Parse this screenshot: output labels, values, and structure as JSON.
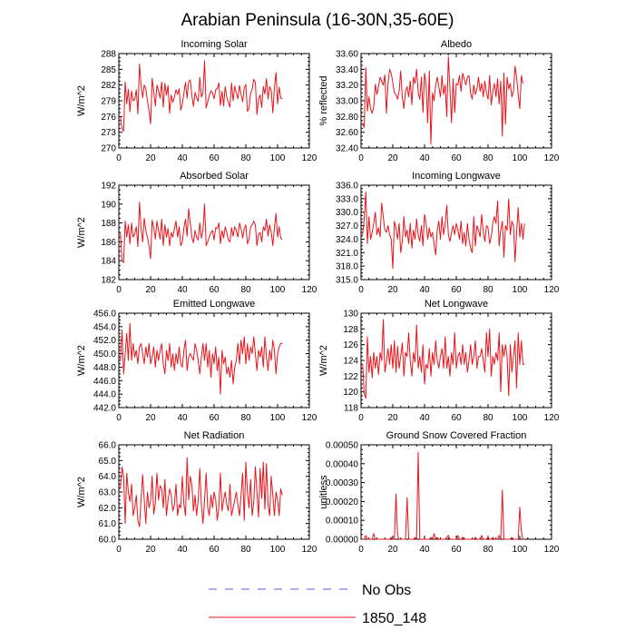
{
  "title": "Arabian Peninsula (16-30N,35-60E)",
  "colors": {
    "model_line": "#e8141b",
    "obs_line": "#5b5bd6",
    "axis": "#000000"
  },
  "legend": {
    "obs_label": "No Obs",
    "model_label": "1850_148"
  },
  "chart_data": [
    {
      "type": "line",
      "title": "Incoming Solar",
      "ylabel": "W/m^2",
      "xlim": [
        0,
        120
      ],
      "xticks": [
        0,
        20,
        40,
        60,
        80,
        100,
        120
      ],
      "ylim": [
        270,
        288
      ],
      "yticks": [
        "270",
        "273",
        "276",
        "279",
        "282",
        "285",
        "288"
      ],
      "series": [
        {
          "values": [
            276.0,
            273.7,
            273.2,
            282.6,
            278.4,
            281.2,
            276.9,
            280.9,
            279.0,
            279.2,
            281.1,
            276.5,
            286.0,
            282.0,
            279.6,
            282.0,
            281.3,
            279.0,
            277.1,
            274.6,
            283.3,
            280.8,
            278.0,
            282.0,
            280.9,
            279.5,
            282.6,
            277.8,
            282.3,
            280.1,
            281.9,
            276.6,
            280.1,
            278.7,
            279.7,
            281.1,
            280.2,
            281.3,
            277.2,
            278.4,
            280.5,
            282.5,
            279.5,
            282.6,
            283.0,
            280.0,
            277.9,
            280.6,
            279.6,
            278.9,
            283.5,
            279.7,
            280.5,
            286.6,
            277.6,
            278.8,
            280.0,
            280.9,
            280.5,
            279.4,
            281.1,
            281.3,
            282.4,
            278.1,
            280.8,
            278.0,
            281.7,
            279.7,
            278.7,
            277.8,
            282.4,
            279.0,
            281.8,
            280.5,
            279.4,
            281.9,
            280.2,
            278.8,
            281.5,
            282.1,
            277.0,
            277.5,
            280.5,
            281.2,
            283.1,
            282.5,
            276.4,
            279.3,
            280.1,
            277.7,
            281.7,
            280.3,
            283.2,
            279.3,
            281.7,
            281.0,
            276.7,
            281.5,
            284.4,
            278.4,
            281.6,
            279.5,
            279.4
          ]
        }
      ]
    },
    {
      "type": "line",
      "title": "Albedo",
      "ylabel": "% reflected",
      "xlim": [
        0,
        120
      ],
      "xticks": [
        0,
        20,
        40,
        60,
        80,
        100,
        120
      ],
      "ylim": [
        32.4,
        33.6
      ],
      "yticks": [
        "32.40",
        "32.60",
        "32.80",
        "33.00",
        "33.20",
        "33.40",
        "33.60"
      ],
      "series": [
        {
          "values": [
            32.72,
            32.66,
            33.42,
            32.87,
            33.05,
            32.9,
            32.84,
            32.92,
            33.21,
            33.08,
            33.18,
            33.3,
            33.25,
            33.2,
            33.33,
            32.84,
            33.22,
            33.4,
            33.35,
            33.23,
            33.1,
            33.08,
            33.02,
            33.12,
            33.38,
            33.05,
            32.9,
            33.12,
            33.18,
            33.05,
            33.25,
            32.95,
            33.3,
            33.22,
            33.4,
            33.1,
            33.02,
            33.3,
            32.85,
            33.35,
            33.2,
            32.72,
            33.38,
            32.45,
            33.1,
            33.0,
            33.2,
            33.3,
            33.18,
            33.05,
            33.32,
            33.08,
            33.2,
            32.8,
            33.56,
            33.15,
            32.72,
            33.28,
            32.85,
            33.22,
            33.2,
            33.32,
            33.12,
            33.35,
            33.28,
            33.2,
            33.3,
            33.32,
            33.1,
            33.02,
            33.2,
            33.08,
            33.15,
            33.3,
            33.12,
            33.22,
            33.05,
            33.25,
            33.1,
            33.02,
            33.32,
            32.95,
            33.12,
            33.22,
            33.05,
            33.28,
            32.96,
            33.25,
            32.55,
            33.35,
            32.7,
            33.3,
            33.15,
            33.22,
            33.05,
            33.12,
            33.44,
            33.3,
            33.08,
            32.9,
            33.32,
            33.22
          ]
        }
      ]
    },
    {
      "type": "line",
      "title": "Absorbed Solar",
      "ylabel": "W/m^2",
      "xlim": [
        0,
        120
      ],
      "xticks": [
        0,
        20,
        40,
        60,
        80,
        100,
        120
      ],
      "ylim": [
        182,
        192
      ],
      "yticks": [
        "182",
        "184",
        "186",
        "188",
        "190",
        "192"
      ],
      "series": [
        {
          "values": [
            187.0,
            184.0,
            183.8,
            188.2,
            186.5,
            187.8,
            185.8,
            188.0,
            186.5,
            186.8,
            187.6,
            185.5,
            190.2,
            187.5,
            186.0,
            188.5,
            187.2,
            186.5,
            185.6,
            184.2,
            188.3,
            187.5,
            186.3,
            188.2,
            187.2,
            186.3,
            188.4,
            185.6,
            187.8,
            186.5,
            187.4,
            185.6,
            187.0,
            186.5,
            187.4,
            188.2,
            186.5,
            187.6,
            185.6,
            186.0,
            187.5,
            188.4,
            186.6,
            189.5,
            188.0,
            186.5,
            185.9,
            187.2,
            186.5,
            186.2,
            188.0,
            186.4,
            187.2,
            190.0,
            185.6,
            186.0,
            186.5,
            187.0,
            187.2,
            186.2,
            187.5,
            187.4,
            188.0,
            185.8,
            187.2,
            186.4,
            187.6,
            187.0,
            186.2,
            186.0,
            187.5,
            186.6,
            187.6,
            187.2,
            186.5,
            188.0,
            187.4,
            186.4,
            187.4,
            187.8,
            185.8,
            186.2,
            187.6,
            187.8,
            188.2,
            187.8,
            185.6,
            186.8,
            187.0,
            186.0,
            187.6,
            187.2,
            188.4,
            186.6,
            187.8,
            187.0,
            185.6,
            187.5,
            189.0,
            186.5,
            187.6,
            186.4,
            186.2
          ]
        }
      ]
    },
    {
      "type": "line",
      "title": "Incoming Longwave",
      "ylabel": "",
      "xlim": [
        0,
        120
      ],
      "xticks": [
        0,
        20,
        40,
        60,
        80,
        100,
        120
      ],
      "ylim": [
        315,
        336
      ],
      "yticks": [
        "315.0",
        "318.0",
        "321.0",
        "324.0",
        "327.0",
        "330.0",
        "333.0",
        "336.0"
      ],
      "series": [
        {
          "values": [
            325.0,
            328.5,
            334.5,
            323.0,
            329.0,
            324.0,
            325.5,
            327.5,
            330.0,
            325.0,
            326.5,
            324.5,
            332.0,
            329.0,
            326.0,
            325.5,
            327.0,
            325.0,
            324.0,
            317.5,
            328.0,
            326.5,
            324.0,
            327.5,
            321.0,
            323.5,
            329.0,
            324.5,
            326.0,
            323.0,
            327.5,
            322.0,
            326.0,
            324.0,
            328.5,
            325.0,
            323.5,
            327.0,
            322.5,
            329.5,
            327.5,
            324.0,
            326.5,
            324.5,
            325.5,
            323.0,
            320.5,
            326.0,
            328.0,
            324.0,
            329.0,
            325.0,
            327.5,
            331.5,
            325.0,
            323.5,
            325.5,
            327.0,
            325.0,
            327.5,
            326.0,
            324.0,
            328.0,
            323.0,
            325.5,
            322.5,
            327.5,
            324.0,
            322.0,
            321.0,
            329.0,
            322.5,
            327.0,
            326.0,
            324.5,
            329.5,
            325.5,
            323.5,
            327.0,
            326.5,
            323.0,
            324.5,
            327.5,
            329.0,
            327.5,
            332.5,
            322.5,
            326.0,
            328.0,
            320.0,
            327.0,
            326.0,
            333.0,
            325.0,
            328.0,
            327.0,
            319.0,
            325.5,
            331.0,
            324.5,
            327.5,
            324.0,
            327.5
          ]
        }
      ]
    },
    {
      "type": "line",
      "title": "Emitted Longwave",
      "ylabel": "W/m^2",
      "xlim": [
        0,
        120
      ],
      "xticks": [
        0,
        20,
        40,
        60,
        80,
        100,
        120
      ],
      "ylim": [
        442,
        456
      ],
      "yticks": [
        "442.0",
        "444.0",
        "446.0",
        "448.0",
        "450.0",
        "452.0",
        "454.0",
        "456.0"
      ],
      "series": [
        {
          "values": [
            449.0,
            453.5,
            447.0,
            450.0,
            453.0,
            449.0,
            454.5,
            449.0,
            451.5,
            449.5,
            450.5,
            448.5,
            451.0,
            451.5,
            450.0,
            448.5,
            451.0,
            449.5,
            451.5,
            448.5,
            449.5,
            451.0,
            448.0,
            450.5,
            449.0,
            450.5,
            451.5,
            448.5,
            447.0,
            450.5,
            449.0,
            451.5,
            448.0,
            450.0,
            447.5,
            450.0,
            448.5,
            451.0,
            448.5,
            448.0,
            450.5,
            452.0,
            447.5,
            449.5,
            450.0,
            449.5,
            449.0,
            451.5,
            450.5,
            449.0,
            447.0,
            449.5,
            451.5,
            449.0,
            451.5,
            448.0,
            450.5,
            446.5,
            450.0,
            448.5,
            451.0,
            447.5,
            449.5,
            444.0,
            450.5,
            448.5,
            449.5,
            447.0,
            448.0,
            446.5,
            449.0,
            445.5,
            448.0,
            449.0,
            451.5,
            448.5,
            452.0,
            450.0,
            452.5,
            448.5,
            451.5,
            449.0,
            451.0,
            450.0,
            452.5,
            450.0,
            447.5,
            450.5,
            449.5,
            451.0,
            448.0,
            452.5,
            449.5,
            447.5,
            450.5,
            449.0,
            452.0,
            450.5,
            447.0,
            450.0,
            451.0,
            451.5,
            451.5
          ]
        }
      ]
    },
    {
      "type": "line",
      "title": "Net Longwave",
      "ylabel": "W/m^2",
      "xlim": [
        0,
        120
      ],
      "xticks": [
        0,
        20,
        40,
        60,
        80,
        100,
        120
      ],
      "ylim": [
        118,
        130
      ],
      "yticks": [
        "118",
        "120",
        "122",
        "124",
        "126",
        "128",
        "130"
      ],
      "series": [
        {
          "values": [
            123.5,
            119.8,
            119.2,
            127.0,
            122.5,
            124.5,
            121.8,
            125.0,
            123.0,
            124.5,
            122.2,
            125.0,
            124.0,
            129.2,
            122.5,
            123.8,
            125.5,
            123.5,
            126.0,
            123.0,
            126.5,
            122.5,
            125.8,
            123.0,
            124.5,
            126.2,
            122.0,
            125.0,
            124.5,
            127.5,
            124.0,
            122.0,
            125.0,
            123.8,
            128.5,
            123.0,
            124.5,
            122.5,
            126.0,
            121.0,
            123.5,
            123.0,
            125.5,
            122.0,
            125.0,
            123.5,
            126.5,
            124.0,
            123.0,
            124.5,
            125.5,
            123.0,
            127.0,
            123.0,
            124.5,
            122.0,
            125.0,
            123.5,
            127.5,
            123.0,
            124.5,
            125.0,
            123.5,
            126.0,
            123.5,
            125.0,
            122.5,
            124.0,
            126.0,
            123.5,
            124.5,
            126.5,
            123.0,
            124.5,
            124.5,
            125.5,
            124.0,
            122.5,
            127.5,
            124.5,
            128.0,
            122.0,
            124.5,
            123.5,
            125.0,
            124.0,
            127.5,
            120.0,
            126.0,
            124.5,
            126.0,
            124.5,
            119.5,
            126.0,
            122.5,
            124.5,
            126.5,
            120.5,
            127.5,
            123.5,
            126.5,
            123.5,
            123.5
          ]
        }
      ]
    },
    {
      "type": "line",
      "title": "Net Radiation",
      "ylabel": "W/m^2",
      "xlim": [
        0,
        120
      ],
      "xticks": [
        0,
        20,
        40,
        60,
        80,
        100,
        120
      ],
      "ylim": [
        60,
        66
      ],
      "yticks": [
        "60.0",
        "61.0",
        "62.0",
        "63.0",
        "64.0",
        "65.0",
        "66.0"
      ],
      "series": [
        {
          "values": [
            63.2,
            64.6,
            64.0,
            61.0,
            64.2,
            63.0,
            62.4,
            63.5,
            61.5,
            62.0,
            62.8,
            61.2,
            60.8,
            62.5,
            64.1,
            62.5,
            61.0,
            63.0,
            62.0,
            62.4,
            64.0,
            61.6,
            62.3,
            64.2,
            62.5,
            63.4,
            63.2,
            62.0,
            63.8,
            61.5,
            62.5,
            63.2,
            62.8,
            61.8,
            62.2,
            63.5,
            61.5,
            62.2,
            62.0,
            64.0,
            62.2,
            61.5,
            65.2,
            62.5,
            64.0,
            63.5,
            61.8,
            62.8,
            61.5,
            62.5,
            64.5,
            62.2,
            61.0,
            62.5,
            64.2,
            62.0,
            61.5,
            62.8,
            62.0,
            63.0,
            62.5,
            61.2,
            62.0,
            64.2,
            61.8,
            62.5,
            63.0,
            62.2,
            61.8,
            63.5,
            61.5,
            62.0,
            62.5,
            63.0,
            62.2,
            61.5,
            62.8,
            64.2,
            61.2,
            64.9,
            63.0,
            62.0,
            63.8,
            61.5,
            62.4,
            64.6,
            63.0,
            61.4,
            64.5,
            62.6,
            64.9,
            61.9,
            64.8,
            62.2,
            61.5,
            64.0,
            62.8,
            61.5,
            63.0,
            62.5,
            61.5,
            63.2,
            62.8
          ]
        }
      ]
    },
    {
      "type": "line",
      "title": "Ground Snow Covered Fraction",
      "ylabel": "unitless",
      "xlim": [
        0,
        120
      ],
      "xticks": [
        0,
        20,
        40,
        60,
        80,
        100,
        120
      ],
      "ylim": [
        0,
        0.0005
      ],
      "yticks": [
        "0.00000",
        "0.00010",
        "0.00020",
        "0.00030",
        "0.00040",
        "0.00050"
      ],
      "series": [
        {
          "values": [
            0.0,
            0.0,
            2e-05,
            0.0,
            0.0,
            0.0,
            0.0,
            3e-05,
            0.0,
            0.0,
            0.0,
            0.0,
            0.0,
            0.0,
            0.0,
            0.0,
            0.0,
            0.0,
            1e-05,
            0.0,
            0.0,
            0.00024,
            2e-05,
            0.0,
            0.0,
            0.0,
            0.0,
            0.0,
            0.00022,
            0.0,
            0.0,
            0.0,
            0.0,
            1e-05,
            0.0,
            0.00046,
            0.0,
            0.0,
            0.0,
            0.0,
            0.0,
            0.0,
            0.0,
            1e-05,
            0.0,
            3e-05,
            0.0,
            1e-05,
            0.0,
            0.0,
            0.0,
            0.0,
            0.0,
            1e-05,
            2e-05,
            0.0,
            0.0,
            0.0,
            0.0,
            0.0,
            2e-05,
            0.0,
            0.0,
            1e-05,
            0.0,
            0.0,
            0.0,
            0.0,
            0.0,
            0.0,
            0.0,
            1e-05,
            0.0,
            0.0,
            0.0,
            2e-05,
            0.0,
            0.0,
            0.0,
            1e-05,
            0.0,
            0.0,
            1e-05,
            0.0,
            0.0,
            0.0,
            2e-05,
            0.0,
            0.00026,
            0.0,
            0.0,
            0.0,
            0.0,
            0.0,
            1e-05,
            0.0,
            0.0,
            0.0,
            0.0,
            0.00017,
            4e-05,
            0.0,
            0.0
          ]
        }
      ]
    }
  ]
}
